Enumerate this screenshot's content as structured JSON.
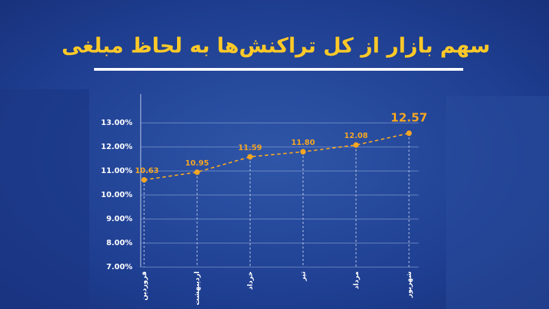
{
  "chart_data": {
    "type": "line",
    "title": "سهم بازار از کل تراکنش‌ها به لحاظ مبلغی",
    "categories": [
      "فروردین",
      "اردیبهشت",
      "خرداد",
      "تیر",
      "مرداد",
      "شهریور"
    ],
    "values": [
      10.63,
      10.95,
      11.59,
      11.8,
      12.08,
      12.57
    ],
    "value_labels": [
      "10.63",
      "10.95",
      "11.59",
      "11.80",
      "12.08",
      "12.57"
    ],
    "color": "#f5a623",
    "ylim": [
      7,
      14.2
    ],
    "yticks": [
      {
        "value": 7,
        "label": "7.00%"
      },
      {
        "value": 8,
        "label": "8.00%"
      },
      {
        "value": 9,
        "label": "9.00%"
      },
      {
        "value": 10,
        "label": "10.00%"
      },
      {
        "value": 11,
        "label": "11.00%"
      },
      {
        "value": 12,
        "label": "12.00%"
      },
      {
        "value": 13,
        "label": "13.00%"
      }
    ],
    "grid": true
  }
}
